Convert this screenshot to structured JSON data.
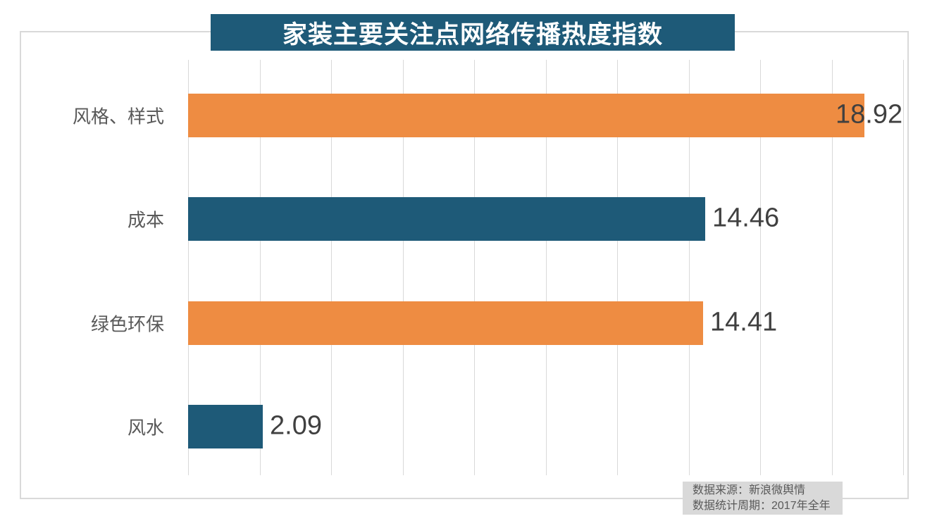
{
  "chart_data": {
    "type": "bar",
    "orientation": "horizontal",
    "title": "家装主要关注点网络传播热度指数",
    "categories": [
      "风格、样式",
      "成本",
      "绿色环保",
      "风水"
    ],
    "values": [
      18.92,
      14.46,
      14.41,
      2.09
    ],
    "value_labels": [
      "18.92",
      "14.46",
      "14.41",
      "2.09"
    ],
    "bar_colors": [
      "#EE8C42",
      "#1E5A78",
      "#EE8C42",
      "#1E5A78"
    ],
    "xlim": [
      0,
      20
    ],
    "grid_interval": 2,
    "grid": "vertical-only",
    "legend": "none",
    "value_label_position": "outside-end"
  },
  "footer": {
    "source_line": "数据来源：新浪微舆情",
    "period_line": "数据统计周期：2017年全年"
  },
  "colors": {
    "bar_orange": "#EE8C42",
    "bar_teal": "#1E5A78",
    "title_bg": "#1E5A78",
    "title_text": "#FFFFFF",
    "gridline": "#D9D9D9",
    "card_border": "#D9D9D9",
    "footer_bg": "#D9D9D9",
    "category_text": "#595959",
    "value_text": "#404040"
  }
}
